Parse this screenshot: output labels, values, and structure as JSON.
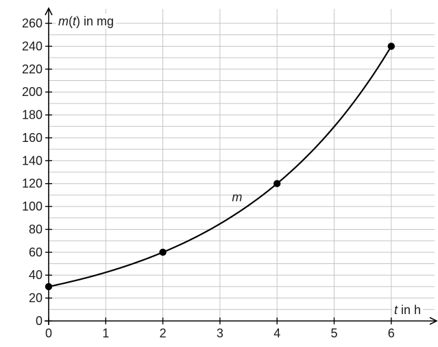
{
  "chart_data": {
    "type": "line",
    "title": "",
    "xlabel": {
      "var": "t",
      "rest": " in h"
    },
    "ylabel": {
      "func": "m",
      "open": "(",
      "var": "t",
      "close": ")",
      "rest": " in mg"
    },
    "xlim": [
      0,
      7
    ],
    "ylim": [
      0,
      265
    ],
    "x_ticks": [
      0,
      1,
      2,
      3,
      4,
      5,
      6
    ],
    "y_ticks": [
      0,
      20,
      40,
      60,
      80,
      100,
      120,
      140,
      160,
      180,
      200,
      220,
      240,
      260
    ],
    "x_grid": [
      1,
      2,
      3,
      4,
      5,
      6,
      7
    ],
    "y_grid": [
      10,
      20,
      30,
      40,
      50,
      60,
      70,
      80,
      90,
      100,
      110,
      120,
      130,
      140,
      150,
      160,
      170,
      180,
      190,
      200,
      210,
      220,
      230,
      240,
      250,
      260
    ],
    "grid": true,
    "series": [
      {
        "name": "m",
        "function": "30 * 2^(t/2)",
        "t_range": [
          0,
          6
        ],
        "points": [
          {
            "x": 0,
            "y": 30
          },
          {
            "x": 2,
            "y": 60
          },
          {
            "x": 4,
            "y": 120
          },
          {
            "x": 6,
            "y": 240
          }
        ]
      }
    ],
    "series_label_at": {
      "x": 3.3,
      "y": 108
    }
  }
}
